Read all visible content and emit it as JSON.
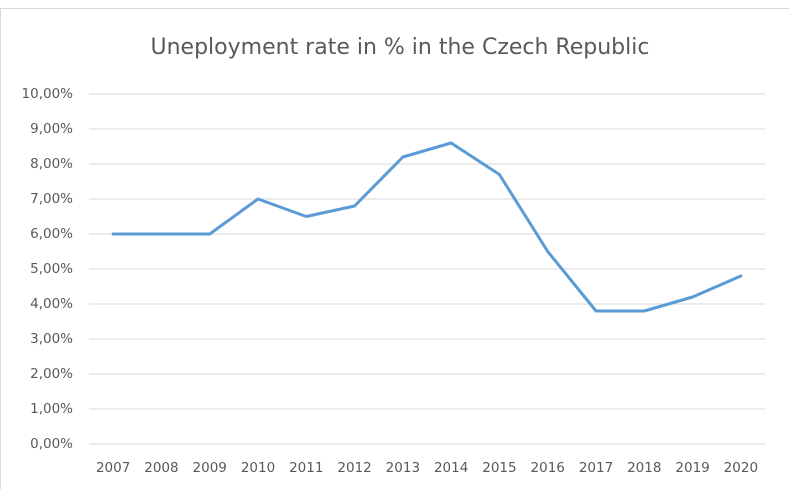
{
  "chart_data": {
    "type": "line",
    "title": "Uneployment rate in % in the Czech Republic",
    "categories": [
      "2007",
      "2008",
      "2009",
      "2010",
      "2011",
      "2012",
      "2013",
      "2014",
      "2015",
      "2016",
      "2017",
      "2018",
      "2019",
      "2020"
    ],
    "series": [
      {
        "color": "#5b9bd5",
        "values": [
          6.0,
          6.0,
          6.0,
          7.0,
          6.5,
          6.8,
          8.2,
          8.6,
          7.7,
          5.5,
          3.8,
          3.8,
          4.2,
          4.8
        ]
      }
    ],
    "ylim": [
      0,
      10
    ],
    "yticks": [
      {
        "value": 0,
        "label": "0,00%"
      },
      {
        "value": 1,
        "label": "1,00%"
      },
      {
        "value": 2,
        "label": "2,00%"
      },
      {
        "value": 3,
        "label": "3,00%"
      },
      {
        "value": 4,
        "label": "4,00%"
      },
      {
        "value": 5,
        "label": "5,00%"
      },
      {
        "value": 6,
        "label": "6,00%"
      },
      {
        "value": 7,
        "label": "7,00%"
      },
      {
        "value": 8,
        "label": "8,00%"
      },
      {
        "value": 9,
        "label": "9,00%"
      },
      {
        "value": 10,
        "label": "10,00%"
      }
    ],
    "grid": true
  }
}
